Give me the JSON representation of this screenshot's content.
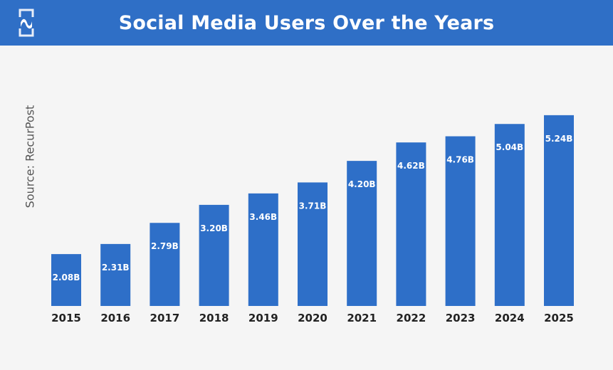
{
  "header": {
    "title": "Social Media Users Over the Years"
  },
  "source": "Source: RecurPost",
  "colors": {
    "header": "#2f6fc6",
    "bar": "#2e6fc8",
    "label": "#ffffff",
    "tick": "#222222"
  },
  "chart_data": {
    "type": "bar",
    "title": "Social Media Users Over the Years",
    "categories": [
      "2015",
      "2016",
      "2017",
      "2018",
      "2019",
      "2020",
      "2021",
      "2022",
      "2023",
      "2024",
      "2025"
    ],
    "values": [
      2.08,
      2.31,
      2.79,
      3.2,
      3.46,
      3.71,
      4.2,
      4.62,
      4.76,
      5.04,
      5.24
    ],
    "data_labels": [
      "2.08B",
      "2.31B",
      "2.79B",
      "3.20B",
      "3.46B",
      "3.71B",
      "4.20B",
      "4.62B",
      "4.76B",
      "5.04B",
      "5.24B"
    ],
    "unit": "B",
    "ylim": [
      0.9,
      5.4
    ],
    "grid": false,
    "legend": "none"
  }
}
